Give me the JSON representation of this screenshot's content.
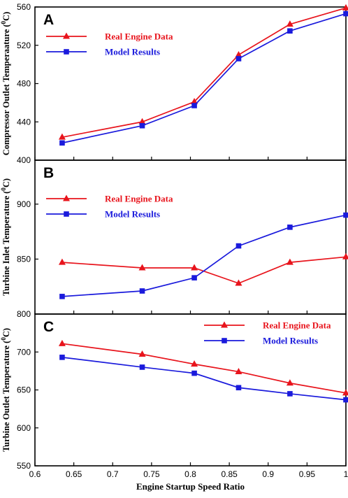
{
  "colors": {
    "real": "#e8141c",
    "model": "#1a1adc"
  },
  "xaxis": {
    "label": "Engine Startup Speed Ratio",
    "ticks": [
      "0.6",
      "0.65",
      "0.7",
      "0.75",
      "0.8",
      "0.85",
      "0.9",
      "0.95",
      "1"
    ],
    "tick_values": [
      0.6,
      0.65,
      0.7,
      0.75,
      0.8,
      0.85,
      0.9,
      0.95,
      1.0
    ],
    "xlim": [
      0.6,
      1.0
    ]
  },
  "chart_data": [
    {
      "type": "line",
      "panel_label": "A",
      "ylabel": "Compressor Outlet Temperaature",
      "ylabel_unit_base": "(",
      "ylabel_unit_sup": "0",
      "ylabel_unit_end": "C)",
      "ylim": [
        400,
        560
      ],
      "yticks": [
        400,
        440,
        480,
        520,
        560
      ],
      "ytick_labels": [
        "400",
        "440",
        "480",
        "520",
        "560"
      ],
      "legend_position": "top-left",
      "x": [
        0.635,
        0.738,
        0.805,
        0.862,
        0.928,
        1.0
      ],
      "series": [
        {
          "name": "Real Engine Data",
          "marker": "triangle",
          "values": [
            424,
            440,
            461,
            510,
            542,
            559
          ]
        },
        {
          "name": "Model Results",
          "marker": "square",
          "values": [
            418,
            436,
            457,
            506,
            535,
            553
          ]
        }
      ]
    },
    {
      "type": "line",
      "panel_label": "B",
      "ylabel": "Turbine Inlet Temperature",
      "ylabel_unit_base": "(",
      "ylabel_unit_sup": "0",
      "ylabel_unit_end": "C)",
      "ylim": [
        800,
        940
      ],
      "yticks": [
        800,
        850,
        900
      ],
      "ytick_labels": [
        "800",
        "850",
        "900"
      ],
      "legend_position": "top-left",
      "x": [
        0.635,
        0.738,
        0.805,
        0.862,
        0.928,
        1.0
      ],
      "series": [
        {
          "name": "Real Engine Data",
          "marker": "triangle",
          "values": [
            847,
            842,
            842,
            828,
            847,
            852
          ]
        },
        {
          "name": "Model Results",
          "marker": "square",
          "values": [
            816,
            821,
            833,
            862,
            879,
            890
          ]
        }
      ]
    },
    {
      "type": "line",
      "panel_label": "C",
      "ylabel": "Turbine Outlet Temperature",
      "ylabel_unit_base": "(",
      "ylabel_unit_sup": "0",
      "ylabel_unit_end": "C)",
      "ylim": [
        550,
        750
      ],
      "yticks": [
        550,
        600,
        650,
        700
      ],
      "ytick_labels": [
        "550",
        "600",
        "650",
        "700"
      ],
      "legend_position": "top-right",
      "x": [
        0.635,
        0.738,
        0.805,
        0.862,
        0.928,
        1.0
      ],
      "series": [
        {
          "name": "Real Engine Data",
          "marker": "triangle",
          "values": [
            711,
            697,
            684,
            674,
            659,
            646
          ]
        },
        {
          "name": "Model Results",
          "marker": "square",
          "values": [
            693,
            680,
            672,
            653,
            645,
            637
          ]
        }
      ]
    }
  ]
}
